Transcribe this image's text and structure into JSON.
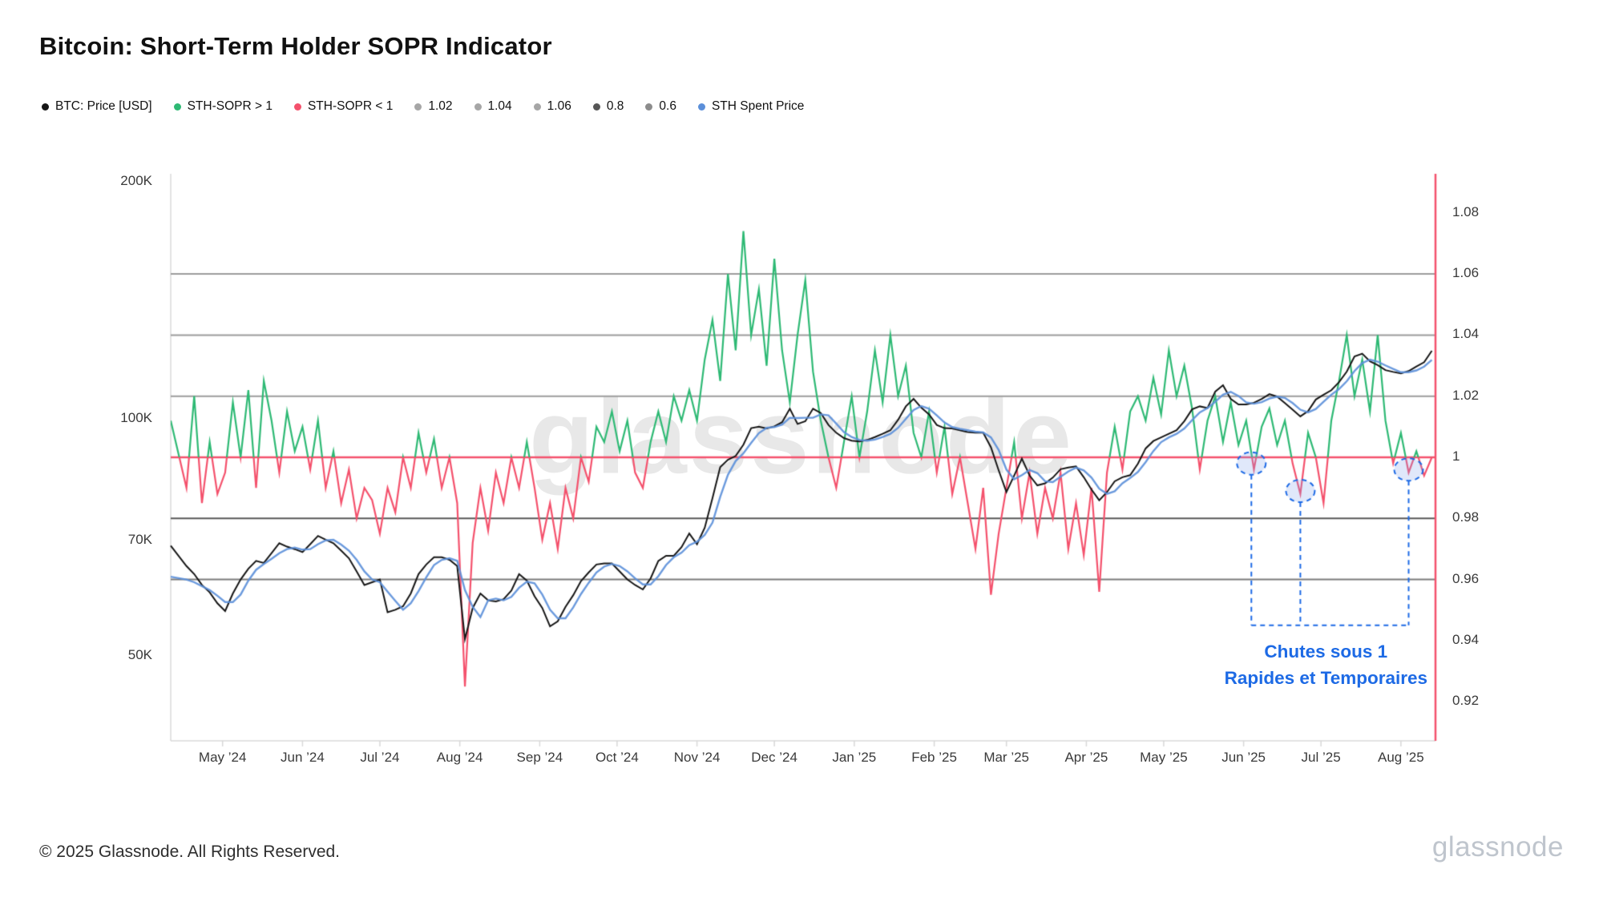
{
  "header": {
    "title": "Bitcoin: Short-Term Holder SOPR Indicator"
  },
  "legend": {
    "items": [
      {
        "label": "BTC: Price [USD]",
        "color": "#161616"
      },
      {
        "label": "STH-SOPR > 1",
        "color": "#2eb974"
      },
      {
        "label": "STH-SOPR < 1",
        "color": "#f4516c"
      },
      {
        "label": "1.02",
        "color": "#a6a6a6"
      },
      {
        "label": "1.04",
        "color": "#a6a6a6"
      },
      {
        "label": "1.06",
        "color": "#a6a6a6"
      },
      {
        "label": "0.8",
        "color": "#565656"
      },
      {
        "label": "0.6",
        "color": "#8c8c8c"
      },
      {
        "label": "STH Spent Price",
        "color": "#5b8fd9"
      }
    ]
  },
  "watermark": {
    "text": "glassnode"
  },
  "footer": {
    "copyright": "© 2025 Glassnode. All Rights Reserved.",
    "logo": "glassnode"
  },
  "chart_data": {
    "type": "line",
    "title": "Bitcoin: Short-Term Holder SOPR Indicator",
    "x_range_note": "mid-Apr 2024 to mid-Aug 2025, sampled every 3 days",
    "sample_interval_days": 3,
    "x_axis": {
      "labels": [
        "May ’24",
        "Jun ’24",
        "Jul ’24",
        "Aug ’24",
        "Sep ’24",
        "Oct ’24",
        "Nov ’24",
        "Dec ’24",
        "Jan ’25",
        "Feb ’25",
        "Mar ’25",
        "Apr ’25",
        "May ’25",
        "Jun ’25",
        "Jul ’25",
        "Aug ’25"
      ],
      "tick_days": [
        17,
        48,
        78,
        109,
        140,
        170,
        201,
        231,
        262,
        293,
        321,
        352,
        382,
        413,
        443,
        474
      ]
    },
    "y_left": {
      "scale": "log",
      "unit": "USD (thousands)",
      "labels": [
        "200K",
        "100K",
        "70K",
        "50K"
      ],
      "values_k": [
        200,
        100,
        70,
        50
      ]
    },
    "y_right": {
      "scale": "linear",
      "unit": "SOPR ratio",
      "labels": [
        "1.08",
        "1.06",
        "1.04",
        "1.02",
        "1",
        "0.98",
        "0.96",
        "0.94",
        "0.92"
      ],
      "values": [
        1.08,
        1.06,
        1.04,
        1.02,
        1,
        0.98,
        0.96,
        0.94,
        0.92
      ],
      "axis_line_color": "#f4516c"
    },
    "gridlines": [
      {
        "value": 1.06,
        "color": "#9b9b9b"
      },
      {
        "value": 1.04,
        "color": "#9b9b9b"
      },
      {
        "value": 1.02,
        "color": "#9b9b9b"
      },
      {
        "value": 0.98,
        "color": "#585858"
      },
      {
        "value": 0.96,
        "color": "#7a7a7a"
      }
    ],
    "baseline": {
      "value": 1,
      "color": "#f4516c"
    },
    "series": [
      {
        "name": "BTC: Price [USD]",
        "axis": "left",
        "color": "#161616",
        "unit": "USD thousands",
        "values": [
          69,
          65,
          63.5,
          61.5,
          60.2,
          58.3,
          57,
          60,
          62.5,
          64.5,
          66,
          65.6,
          67.5,
          69.5,
          68.8,
          68.3,
          67.7,
          69.3,
          71,
          70.2,
          69.5,
          68,
          66.5,
          64,
          61.5,
          62,
          62.5,
          56.8,
          57.2,
          57.8,
          60,
          63.5,
          65.3,
          66.7,
          66.7,
          66.2,
          65,
          52.5,
          57.5,
          60,
          58.8,
          58.6,
          59,
          60.5,
          63.5,
          62.3,
          59.5,
          57.5,
          54.5,
          55.3,
          57.7,
          59.7,
          62.2,
          63.8,
          65.3,
          65.5,
          65.5,
          64,
          62.5,
          61.5,
          60.7,
          62.7,
          66,
          67,
          67,
          68.7,
          71.5,
          69.3,
          72.7,
          79.3,
          86.8,
          88.7,
          89.7,
          92.7,
          97.3,
          97.7,
          97.2,
          97.8,
          99,
          103,
          98.5,
          99.3,
          103,
          101.7,
          98.2,
          96,
          94.5,
          93.8,
          93.6,
          94,
          94.8,
          95.7,
          96.7,
          99.7,
          103.7,
          106,
          103.3,
          101.3,
          98.2,
          97.3,
          97.2,
          96.7,
          96.2,
          96,
          96,
          92,
          86,
          80.7,
          84.7,
          89,
          84.7,
          82.3,
          82.8,
          84.2,
          86.3,
          86.7,
          87,
          84.3,
          81.3,
          78.8,
          80.7,
          83.3,
          84.3,
          84.8,
          87.7,
          91.7,
          93.7,
          94.7,
          95.7,
          96.7,
          99.3,
          102.8,
          103.7,
          103.2,
          108.3,
          110.3,
          106,
          104.3,
          104.3,
          104.8,
          106,
          107.5,
          106.7,
          104.7,
          102.7,
          100.7,
          102.3,
          105.8,
          107.3,
          108.7,
          111.3,
          114.8,
          120,
          121,
          118.3,
          117,
          115.3,
          114.7,
          114.2,
          115,
          116.5,
          118,
          122
        ]
      },
      {
        "name": "STH Spent Price",
        "axis": "left",
        "color": "#5b8fd9",
        "unit": "USD thousands",
        "values": [
          63,
          62.5,
          62,
          61.3,
          60.6,
          59.6,
          58.5,
          58.5,
          59.8,
          62.3,
          64.3,
          65.4,
          66.4,
          67.5,
          68.3,
          68.6,
          68.2,
          68.3,
          69.3,
          70.1,
          70.2,
          69.2,
          68,
          66.2,
          64,
          62.5,
          62,
          60.3,
          58.7,
          57.2,
          58.3,
          60.4,
          62.9,
          65.2,
          66.2,
          66.5,
          66,
          60.6,
          57.7,
          56,
          58.8,
          59.1,
          58.8,
          59.4,
          61,
          62.1,
          61.8,
          59.8,
          57.2,
          55.8,
          55.8,
          57.6,
          59.9,
          61.9,
          63.8,
          64.9,
          65.4,
          65,
          64,
          62.7,
          61.6,
          61.6,
          63.1,
          65.2,
          66.7,
          67.6,
          69.1,
          69.8,
          71.2,
          73.8,
          79.6,
          84.9,
          88.4,
          90.4,
          93.2,
          95.9,
          97.4,
          97.6,
          98.3,
          100.3,
          100.2,
          100.3,
          100.3,
          101.3,
          101,
          98.6,
          96.2,
          94.8,
          94,
          93.8,
          94.1,
          94.8,
          95.7,
          97.4,
          100,
          102.6,
          103.8,
          103,
          101,
          98.9,
          97.6,
          97.1,
          96.7,
          96.3,
          96.1,
          94.7,
          91.3,
          86.2,
          83.8,
          84.8,
          86.1,
          85.3,
          83.3,
          83.1,
          84.4,
          85.7,
          86.7,
          86,
          84.2,
          81.5,
          80.3,
          80.9,
          82.8,
          84.1,
          85.6,
          88.1,
          91,
          93.4,
          94.7,
          95.7,
          97.2,
          99.6,
          101.9,
          103.2,
          105.1,
          107.3,
          108.2,
          106.9,
          104.9,
          104.5,
          105,
          106.1,
          106.7,
          106.3,
          104.7,
          102.7,
          101.9,
          102.9,
          105.1,
          107.3,
          109.1,
          111.6,
          115,
          117.7,
          118.9,
          118.2,
          116.9,
          115.7,
          114.6,
          114.6,
          115.2,
          116.5,
          118.8
        ]
      },
      {
        "name": "STH-SOPR",
        "axis": "right",
        "color_above_1": "#2eb974",
        "color_below_1": "#f4516c",
        "values": [
          1.012,
          0.99,
          1.02,
          0.985,
          1.005,
          0.988,
          0.995,
          1.018,
          1.0,
          1.022,
          0.99,
          1.025,
          1.012,
          0.995,
          1.015,
          1.002,
          1.01,
          0.996,
          1.012,
          0.99,
          1.002,
          0.985,
          0.996,
          0.98,
          0.99,
          0.986,
          0.975,
          0.99,
          0.982,
          1.0,
          0.99,
          1.008,
          0.995,
          1.006,
          0.99,
          1.0,
          0.985,
          0.925,
          0.972,
          0.99,
          0.976,
          0.995,
          0.985,
          1.0,
          0.99,
          1.005,
          0.99,
          0.973,
          0.985,
          0.97,
          0.99,
          0.98,
          1.0,
          0.992,
          1.01,
          1.005,
          1.015,
          1.002,
          1.012,
          0.995,
          0.99,
          1.005,
          1.015,
          1.005,
          1.02,
          1.012,
          1.022,
          1.012,
          1.032,
          1.045,
          1.025,
          1.06,
          1.035,
          1.074,
          1.04,
          1.055,
          1.03,
          1.065,
          1.035,
          1.018,
          1.04,
          1.058,
          1.028,
          1.012,
          1.0,
          0.99,
          1.005,
          1.02,
          1.0,
          1.015,
          1.035,
          1.018,
          1.04,
          1.02,
          1.03,
          1.008,
          1.0,
          1.015,
          0.995,
          1.01,
          0.988,
          1.0,
          0.985,
          0.97,
          0.99,
          0.955,
          0.975,
          0.99,
          1.005,
          0.98,
          0.995,
          0.975,
          0.99,
          0.98,
          0.995,
          0.97,
          0.985,
          0.968,
          0.99,
          0.956,
          0.995,
          1.01,
          0.996,
          1.015,
          1.02,
          1.012,
          1.026,
          1.014,
          1.035,
          1.02,
          1.03,
          1.016,
          0.996,
          1.012,
          1.02,
          1.005,
          1.018,
          1.004,
          1.012,
          0.996,
          1.01,
          1.016,
          1.004,
          1.012,
          0.998,
          0.988,
          1.008,
          1.0,
          0.985,
          1.012,
          1.025,
          1.04,
          1.02,
          1.032,
          1.015,
          1.04,
          1.012,
          0.998,
          1.008,
          0.995,
          1.002,
          0.994,
          1.0
        ]
      }
    ],
    "annotation": {
      "lines": [
        "Chutes sous 1",
        "Rapides et Temporaires"
      ],
      "color": "#1d6ae5",
      "connector_sopr": 0.945,
      "callouts": [
        {
          "day": 416,
          "value": 0.998
        },
        {
          "day": 435,
          "value": 0.989
        },
        {
          "day": 477,
          "value": 0.996
        }
      ]
    }
  }
}
